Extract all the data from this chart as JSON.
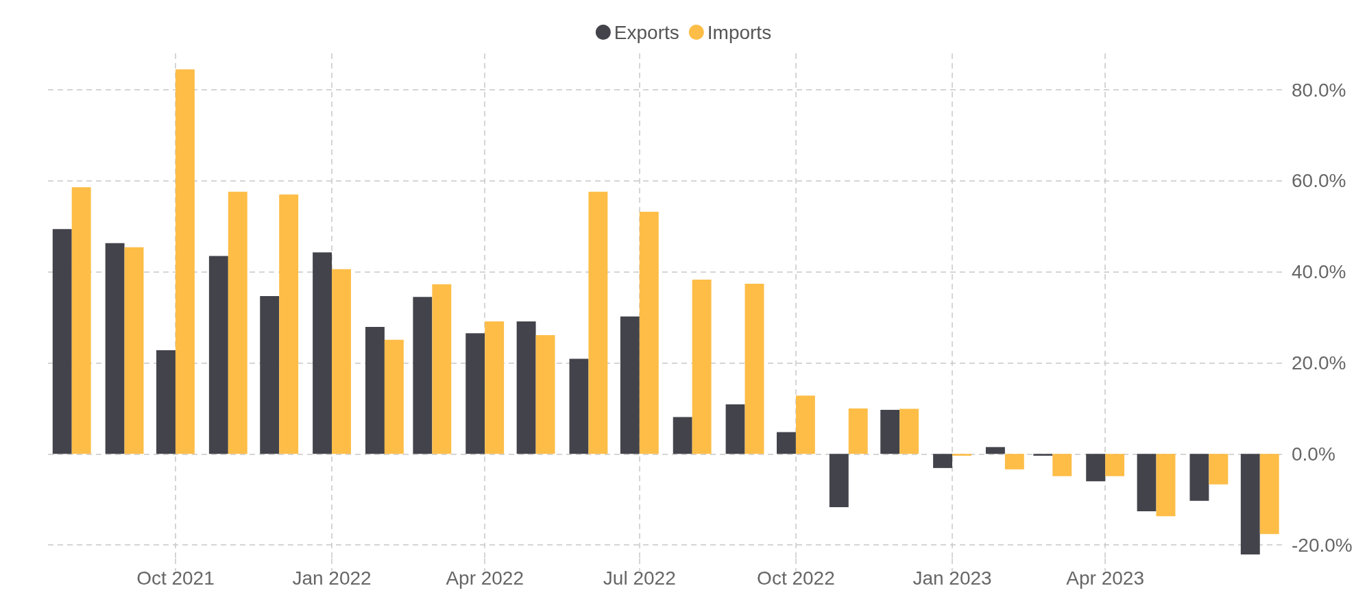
{
  "chart_data": {
    "type": "bar",
    "x": [
      "2021-08",
      "2021-09",
      "2021-10",
      "2021-11",
      "2021-12",
      "2022-01",
      "2022-02",
      "2022-03",
      "2022-04",
      "2022-05",
      "2022-06",
      "2022-07",
      "2022-08",
      "2022-09",
      "2022-10",
      "2022-11",
      "2022-12",
      "2023-01",
      "2023-02",
      "2023-03",
      "2023-04",
      "2023-05",
      "2023-06",
      "2023-07"
    ],
    "series": [
      {
        "name": "Exports",
        "color": "#43434b",
        "values": [
          49.4,
          46.3,
          22.8,
          43.5,
          34.7,
          44.3,
          27.9,
          34.5,
          26.5,
          29.1,
          20.9,
          30.2,
          8.1,
          10.9,
          4.8,
          -11.7,
          9.7,
          -3.1,
          1.5,
          -0.4,
          -6.0,
          -12.6,
          -10.3,
          -22.1
        ]
      },
      {
        "name": "Imports",
        "color": "#fdbd47",
        "values": [
          58.6,
          45.4,
          84.5,
          57.6,
          57.0,
          40.6,
          25.1,
          37.3,
          29.1,
          26.1,
          57.6,
          53.2,
          38.3,
          37.4,
          12.8,
          10.0,
          9.9,
          -0.4,
          -3.4,
          -4.9,
          -4.9,
          -13.7,
          -6.7,
          -17.6
        ]
      }
    ],
    "xlim": [
      "2021-07-18",
      "2023-07-14"
    ],
    "xticks": [
      {
        "value": "2021-10",
        "label": "Oct 2021"
      },
      {
        "value": "2022-01",
        "label": "Jan 2022"
      },
      {
        "value": "2022-04",
        "label": "Apr 2022"
      },
      {
        "value": "2022-07",
        "label": "Jul 2022"
      },
      {
        "value": "2022-10",
        "label": "Oct 2022"
      },
      {
        "value": "2023-01",
        "label": "Jan 2023"
      },
      {
        "value": "2023-04",
        "label": "Apr 2023"
      }
    ],
    "ylim": [
      -23,
      88
    ],
    "yticks": [
      {
        "value": -20,
        "label": "-20.0%"
      },
      {
        "value": 0,
        "label": "0.0%"
      },
      {
        "value": 20,
        "label": "20.0%"
      },
      {
        "value": 40,
        "label": "40.0%"
      },
      {
        "value": 60,
        "label": "60.0%"
      },
      {
        "value": 80,
        "label": "80.0%"
      }
    ],
    "grid": true,
    "legend": "top"
  }
}
